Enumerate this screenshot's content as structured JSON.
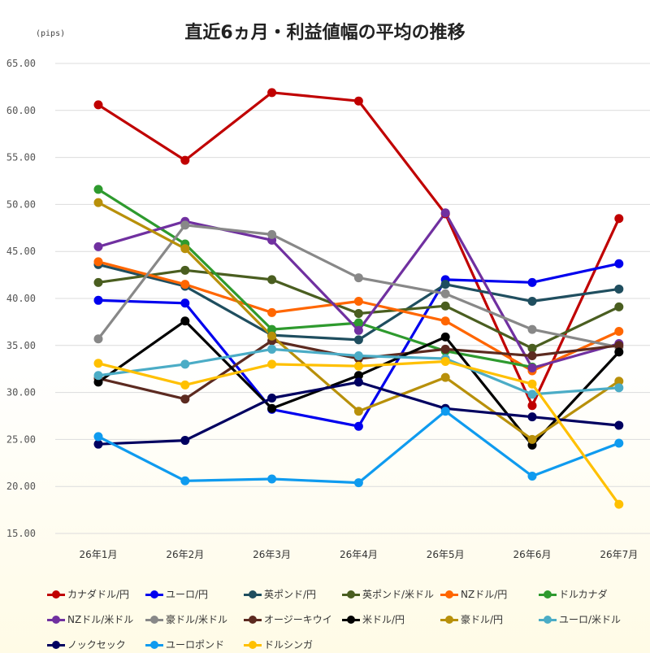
{
  "chart_data": {
    "type": "line",
    "title": "直近6ヵ月・利益値幅の平均の推移",
    "ylabel": "(pips)",
    "categories": [
      "26年1月",
      "26年2月",
      "26年3月",
      "26年4月",
      "26年5月",
      "26年6月",
      "26年7月"
    ],
    "ylim": [
      15,
      65
    ],
    "yticks": [
      "15.00",
      "20.00",
      "25.00",
      "30.00",
      "35.00",
      "40.00",
      "45.00",
      "50.00",
      "55.00",
      "60.00",
      "65.00"
    ],
    "grid": true,
    "legend_position": "bottom",
    "series": [
      {
        "name": "カナダドル/円",
        "color": "#c00000",
        "values": [
          60.6,
          54.7,
          61.9,
          61.0,
          49.0,
          28.6,
          48.5
        ]
      },
      {
        "name": "ユーロ/円",
        "color": "#0000ee",
        "values": [
          39.8,
          39.5,
          28.2,
          26.4,
          42.0,
          41.7,
          43.7
        ]
      },
      {
        "name": "英ポンド/円",
        "color": "#1f4e5f",
        "values": [
          43.6,
          41.3,
          36.1,
          35.6,
          41.5,
          39.7,
          41.0
        ]
      },
      {
        "name": "英ポンド/米ドル",
        "color": "#4a5e20",
        "values": [
          41.7,
          43.0,
          42.0,
          38.4,
          39.2,
          34.7,
          39.1
        ]
      },
      {
        "name": "NZドル/円",
        "color": "#ff6600",
        "values": [
          43.9,
          41.5,
          38.5,
          39.7,
          37.6,
          32.3,
          36.5
        ]
      },
      {
        "name": "ドルカナダ",
        "color": "#2e9a2e",
        "values": [
          51.6,
          45.8,
          36.7,
          37.4,
          34.4,
          32.7,
          null
        ]
      },
      {
        "name": "NZドル/米ドル",
        "color": "#7030a0",
        "values": [
          45.5,
          48.2,
          46.2,
          36.6,
          49.1,
          32.6,
          35.2
        ]
      },
      {
        "name": "豪ドル/米ドル",
        "color": "#888888",
        "values": [
          35.7,
          47.8,
          46.8,
          42.2,
          40.5,
          36.7,
          34.8
        ]
      },
      {
        "name": "オージーキウイ",
        "color": "#5c2a20",
        "values": [
          31.5,
          29.3,
          35.5,
          33.6,
          34.6,
          33.9,
          35.0
        ]
      },
      {
        "name": "米ドル/円",
        "color": "#000000",
        "values": [
          31.1,
          37.6,
          28.3,
          31.8,
          35.9,
          24.4,
          34.3
        ]
      },
      {
        "name": "豪ドル/円",
        "color": "#b8900a",
        "values": [
          50.2,
          45.3,
          36.0,
          28.0,
          31.6,
          25.0,
          31.2
        ]
      },
      {
        "name": "ユーロ/米ドル",
        "color": "#4bacc6",
        "values": [
          31.8,
          33.0,
          34.6,
          33.9,
          33.6,
          29.8,
          30.5
        ]
      },
      {
        "name": "ノックセック",
        "color": "#000060",
        "values": [
          24.5,
          24.9,
          29.4,
          31.1,
          28.3,
          27.4,
          26.5
        ]
      },
      {
        "name": "ユーロポンド",
        "color": "#0f9bef",
        "values": [
          25.3,
          20.6,
          20.8,
          20.4,
          28.0,
          21.1,
          24.6
        ]
      },
      {
        "name": "ドルシンガ",
        "color": "#ffc000",
        "values": [
          33.1,
          30.8,
          33.0,
          32.8,
          33.3,
          30.9,
          18.1
        ]
      }
    ]
  }
}
